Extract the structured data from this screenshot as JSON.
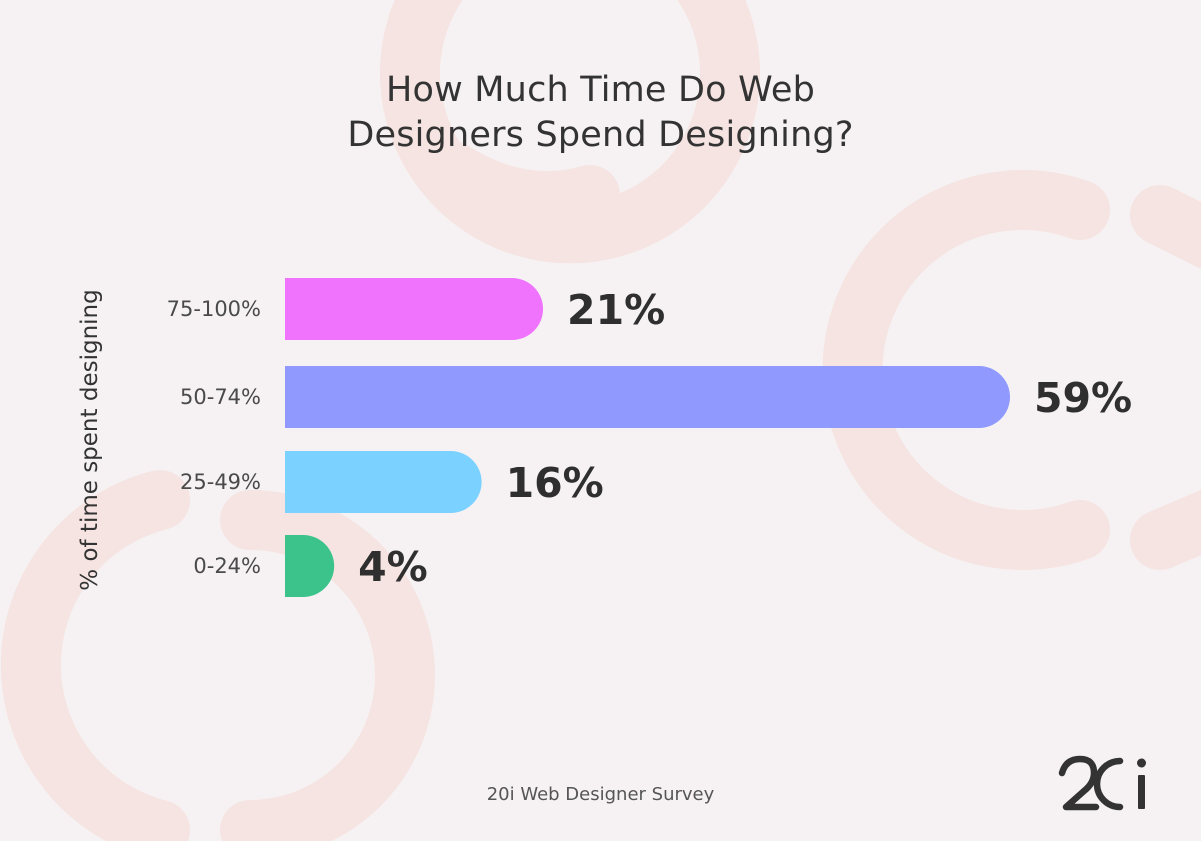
{
  "header": {
    "title_line1": "How Much Time Do Web",
    "title_line2": "Designers Spend Designing?"
  },
  "footer": {
    "source": "20i Web Designer Survey",
    "logo_text": "20i"
  },
  "colors": {
    "background": "#f6f2f3",
    "decor": "#f5e4e1",
    "text": "#333333"
  },
  "chart_data": {
    "type": "bar",
    "orientation": "horizontal",
    "ylabel": "% of time spent designing",
    "categories": [
      "75-100%",
      "50-74%",
      "25-49%",
      "0-24%"
    ],
    "values": [
      21,
      59,
      16,
      4
    ],
    "value_labels": [
      "21%",
      "59%",
      "16%",
      "4%"
    ],
    "colors": [
      "#ef73fd",
      "#8f99fe",
      "#7bd1ff",
      "#3cc38b"
    ],
    "xlim": [
      0,
      59
    ],
    "grid": false,
    "legend": "none"
  }
}
